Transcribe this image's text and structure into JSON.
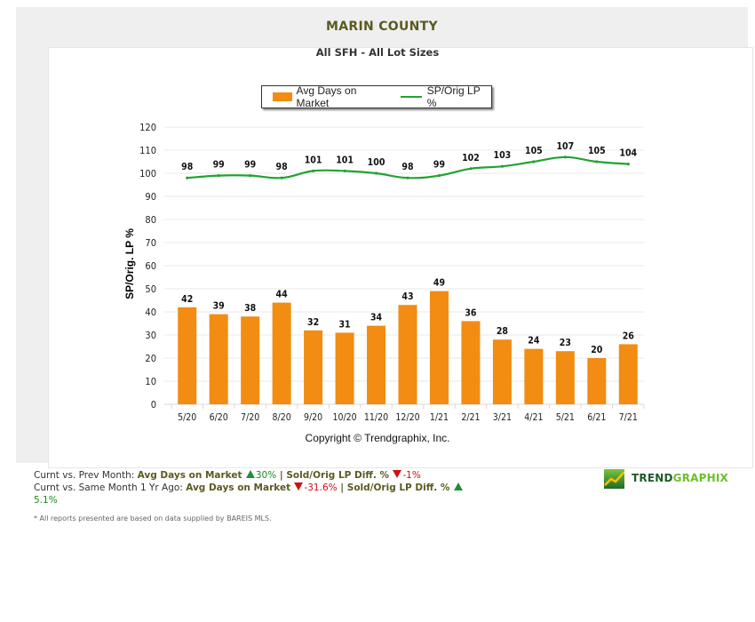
{
  "header": {
    "title": "MARIN COUNTY",
    "subtitle": "All SFH - All Lot Sizes"
  },
  "legend": {
    "items": [
      {
        "label": "Avg Days on Market",
        "type": "bar",
        "color": "#f28c12"
      },
      {
        "label": "SP/Orig LP %",
        "type": "line",
        "color": "#21a332"
      }
    ]
  },
  "chart_data": {
    "type": "bar",
    "title": "MARIN COUNTY",
    "subtitle": "All SFH - All Lot Sizes",
    "xlabel": "",
    "ylabel": "SP/Orig. LP %",
    "ylim": [
      0,
      120
    ],
    "yticks": [
      0,
      10,
      20,
      30,
      40,
      50,
      60,
      70,
      80,
      90,
      100,
      110,
      120
    ],
    "grid": true,
    "legend_position": "top-center",
    "categories": [
      "5/20",
      "6/20",
      "7/20",
      "8/20",
      "9/20",
      "10/20",
      "11/20",
      "12/20",
      "1/21",
      "2/21",
      "3/21",
      "4/21",
      "5/21",
      "6/21",
      "7/21"
    ],
    "series": [
      {
        "name": "Avg Days on Market",
        "type": "bar",
        "color": "#f28c12",
        "values": [
          42,
          39,
          38,
          44,
          32,
          31,
          34,
          43,
          49,
          36,
          28,
          24,
          23,
          20,
          26
        ]
      },
      {
        "name": "SP/Orig LP %",
        "type": "line",
        "color": "#21a332",
        "values": [
          98,
          99,
          99,
          98,
          101,
          101,
          100,
          98,
          99,
          102,
          103,
          105,
          107,
          105,
          104
        ]
      }
    ],
    "annotation": "Copyright © Trendgraphix, Inc."
  },
  "footer": {
    "copyright": "Copyright © Trendgraphix, Inc.",
    "row1": {
      "prefix": "Curnt vs. Prev Month: ",
      "metric1": "Avg Days on Market",
      "metric1_dir": "up",
      "metric1_value": "30%",
      "sep": " | ",
      "metric2": "Sold/Orig LP Diff. %",
      "metric2_dir": "down",
      "metric2_value": "-1%"
    },
    "row2": {
      "prefix": "Curnt vs. Same Month 1 Yr Ago: ",
      "metric1": "Avg Days on Market",
      "metric1_dir": "down",
      "metric1_value": "-31.6%",
      "sep": " | ",
      "metric2": "Sold/Orig LP Diff. %",
      "metric2_dir": "up",
      "metric2_value": "5.1%"
    },
    "footnote": "* All reports presented are based on data supplied by BAREIS MLS.",
    "logo_part1": "TREND",
    "logo_part2": "GRAPHIX"
  }
}
